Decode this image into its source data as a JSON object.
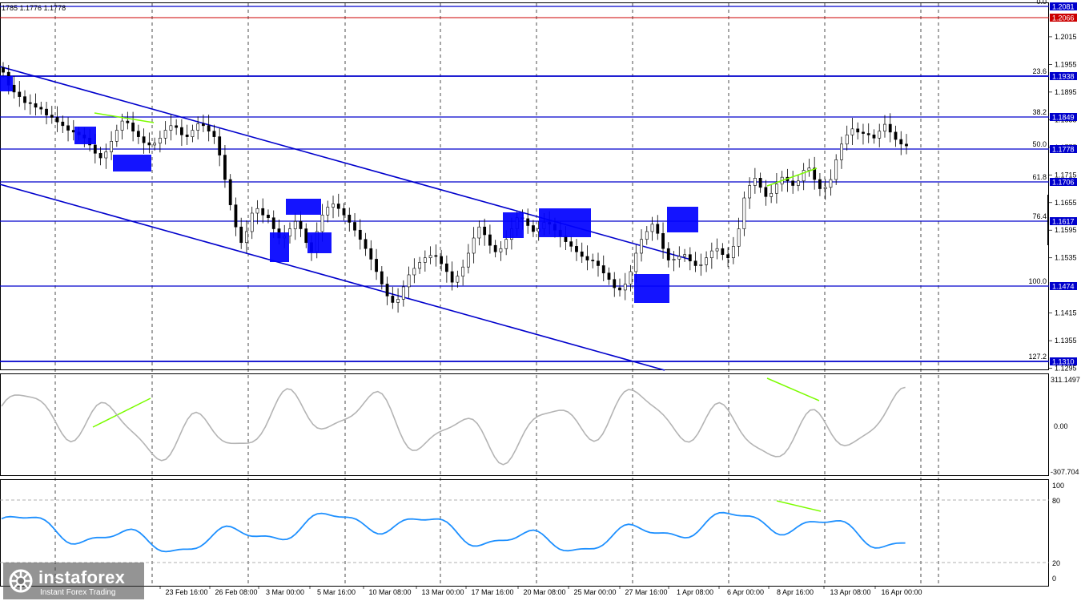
{
  "header": {
    "price_text": "1785 1.1776 1.1778"
  },
  "brand": {
    "name": "instaforex",
    "tagline": "Instant Forex Trading"
  },
  "colors": {
    "trend": "#0000cc",
    "zone": "#0000ff",
    "divergence": "#7cfc00",
    "current_price_badge": "#0000cc",
    "top_badge": "#cc0000",
    "cci_line": "#b4b4b4",
    "rsi_line": "#1e90ff"
  },
  "chart_data": {
    "type": "candlestick",
    "symbol_hint": "EUR/USD",
    "current_price": 1.1778,
    "x_ticks": [
      "23 Feb 16:00",
      "26 Feb 08:00",
      "3 Mar 00:00",
      "5 Mar 16:00",
      "10 Mar 08:00",
      "13 Mar 00:00",
      "17 Mar 16:00",
      "20 Mar 08:00",
      "25 Mar 00:00",
      "27 Mar 16:00",
      "1 Apr 08:00",
      "6 Apr 00:00",
      "8 Apr 16:00",
      "13 Apr 08:00",
      "16 Apr 00:00"
    ],
    "price_ticks": [
      "1.2015",
      "1.1955",
      "1.1895",
      "1.1835",
      "1.1775",
      "1.1715",
      "1.1655",
      "1.1595",
      "1.1535",
      "1.1415",
      "1.1355",
      "1.1295"
    ],
    "fib_levels": [
      {
        "label": "0.0",
        "price": "1.2081"
      },
      {
        "label": "23.6",
        "price": "1.1938"
      },
      {
        "label": "38.2",
        "price": "1.1849"
      },
      {
        "label": "50.0",
        "price": "1.1778"
      },
      {
        "label": "61.8",
        "price": "1.1706"
      },
      {
        "label": "76.4",
        "price": "1.1617"
      },
      {
        "label": "100.0",
        "price": "1.1474"
      },
      {
        "label": "127.2",
        "price": "1.1310"
      }
    ],
    "top_badge_price": "1.2066",
    "cci": {
      "max_label": "311.1497",
      "zero_label": "0.00",
      "min_label": "-307.704"
    },
    "rsi": {
      "levels": [
        "100",
        "80",
        "20",
        "0"
      ]
    },
    "close_series": [
      1.1938,
      1.191,
      1.1895,
      1.1885,
      1.1872,
      1.187,
      1.1862,
      1.1858,
      1.1845,
      1.184,
      1.183,
      1.1822,
      1.1812,
      1.1808,
      1.1802,
      1.1795,
      1.178,
      1.1762,
      1.1752,
      1.1765,
      1.1788,
      1.1812,
      1.1832,
      1.1828,
      1.181,
      1.1798,
      1.1785,
      1.178,
      1.1784,
      1.1795,
      1.1812,
      1.1822,
      1.1818,
      1.1802,
      1.1798,
      1.1812,
      1.1826,
      1.1822,
      1.181,
      1.1798,
      1.1758,
      1.1705,
      1.165,
      1.1602,
      1.1568,
      1.1592,
      1.1632,
      1.1642,
      1.1628,
      1.1622,
      1.1598,
      1.1578,
      1.1582,
      1.1598,
      1.1614,
      1.1598,
      1.1568,
      1.1548,
      1.1592,
      1.1628,
      1.1645,
      1.1652,
      1.1642,
      1.1628,
      1.1612,
      1.1595,
      1.1575,
      1.1555,
      1.1532,
      1.1505,
      1.1478,
      1.1452,
      1.1438,
      1.1445,
      1.1472,
      1.1498,
      1.1512,
      1.1525,
      1.1535,
      1.154,
      1.1538,
      1.1522,
      1.1505,
      1.1482,
      1.1495,
      1.1515,
      1.1545,
      1.1578,
      1.1602,
      1.1585,
      1.1562,
      1.1548,
      1.1555,
      1.1575,
      1.1598,
      1.1622,
      1.162,
      1.1605,
      1.1592,
      1.1598,
      1.1612,
      1.1608,
      1.1595,
      1.1582,
      1.157,
      1.156,
      1.1548,
      1.1538,
      1.153,
      1.1528,
      1.1518,
      1.1502,
      1.1488,
      1.147,
      1.1465,
      1.1478,
      1.1505,
      1.1545,
      1.1575,
      1.1592,
      1.1608,
      1.1588,
      1.1555,
      1.153,
      1.1532,
      1.1538,
      1.1542,
      1.1528,
      1.1518,
      1.152,
      1.1535,
      1.155,
      1.1555,
      1.1542,
      1.1535,
      1.156,
      1.1598,
      1.1665,
      1.1692,
      1.1708,
      1.1688,
      1.1668,
      1.1675,
      1.1695,
      1.171,
      1.1702,
      1.1692,
      1.1702,
      1.1725,
      1.173,
      1.1705,
      1.1685,
      1.1688,
      1.1705,
      1.1748,
      1.1782,
      1.1802,
      1.1815,
      1.1808,
      1.1805,
      1.1802,
      1.1795,
      1.181,
      1.1825,
      1.1808,
      1.1792,
      1.1782,
      1.1778
    ]
  }
}
